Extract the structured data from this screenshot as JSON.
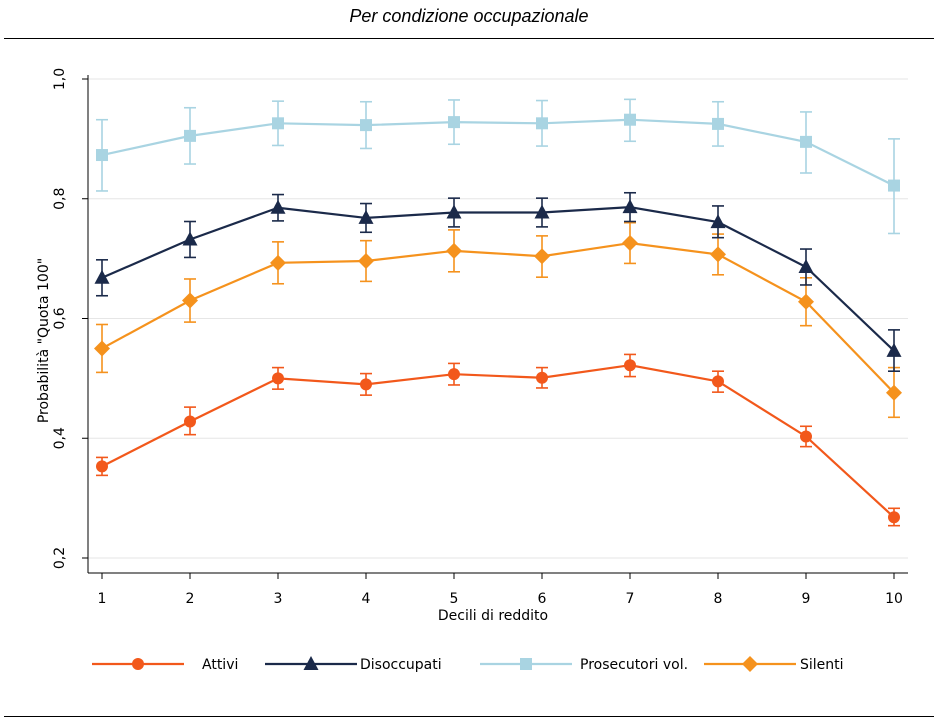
{
  "title": "Per condizione occupazionale",
  "chart_data": {
    "type": "line",
    "title": "Per condizione occupazionale",
    "xlabel": "Decili di reddito",
    "ylabel": "Probabilità \"Quota 100\"",
    "x": [
      1,
      2,
      3,
      4,
      5,
      6,
      7,
      8,
      9,
      10
    ],
    "x_ticks": [
      "1",
      "2",
      "3",
      "4",
      "5",
      "6",
      "7",
      "8",
      "9",
      "10"
    ],
    "y_ticks": [
      0.2,
      0.4,
      0.6,
      0.8,
      1.0
    ],
    "y_tick_labels": [
      "0,2",
      "0,4",
      "0,6",
      "0,8",
      "1,0"
    ],
    "ylim": [
      0.2,
      1.0
    ],
    "xlim": [
      1,
      10
    ],
    "grid": true,
    "legend_position": "bottom",
    "series": [
      {
        "name": "Attivi",
        "color": "#f2581b",
        "marker": "circle",
        "values": [
          0.353,
          0.428,
          0.5,
          0.49,
          0.507,
          0.501,
          0.522,
          0.495,
          0.403,
          0.268
        ],
        "ci_low": [
          0.338,
          0.406,
          0.482,
          0.472,
          0.489,
          0.484,
          0.503,
          0.477,
          0.386,
          0.254
        ],
        "ci_high": [
          0.368,
          0.452,
          0.518,
          0.508,
          0.525,
          0.518,
          0.54,
          0.512,
          0.42,
          0.283
        ]
      },
      {
        "name": "Disoccupati",
        "color": "#1b2a4a",
        "marker": "triangle",
        "values": [
          0.668,
          0.732,
          0.785,
          0.768,
          0.777,
          0.777,
          0.786,
          0.761,
          0.686,
          0.546
        ],
        "ci_low": [
          0.638,
          0.702,
          0.763,
          0.744,
          0.753,
          0.753,
          0.762,
          0.735,
          0.656,
          0.512
        ],
        "ci_high": [
          0.698,
          0.762,
          0.807,
          0.792,
          0.801,
          0.801,
          0.81,
          0.788,
          0.716,
          0.581
        ]
      },
      {
        "name": "Prosecutori vol.",
        "color": "#a9d4e2",
        "marker": "square",
        "values": [
          0.873,
          0.905,
          0.926,
          0.923,
          0.928,
          0.926,
          0.932,
          0.925,
          0.895,
          0.822
        ],
        "ci_low": [
          0.813,
          0.858,
          0.889,
          0.884,
          0.891,
          0.888,
          0.896,
          0.888,
          0.843,
          0.742
        ],
        "ci_high": [
          0.932,
          0.952,
          0.963,
          0.962,
          0.965,
          0.964,
          0.966,
          0.962,
          0.945,
          0.9
        ]
      },
      {
        "name": "Silenti",
        "color": "#f5921d",
        "marker": "diamond",
        "values": [
          0.55,
          0.63,
          0.693,
          0.696,
          0.713,
          0.704,
          0.726,
          0.707,
          0.628,
          0.476
        ],
        "ci_low": [
          0.51,
          0.594,
          0.658,
          0.662,
          0.678,
          0.669,
          0.692,
          0.673,
          0.588,
          0.435
        ],
        "ci_high": [
          0.59,
          0.666,
          0.728,
          0.73,
          0.748,
          0.738,
          0.76,
          0.741,
          0.668,
          0.518
        ]
      }
    ]
  }
}
